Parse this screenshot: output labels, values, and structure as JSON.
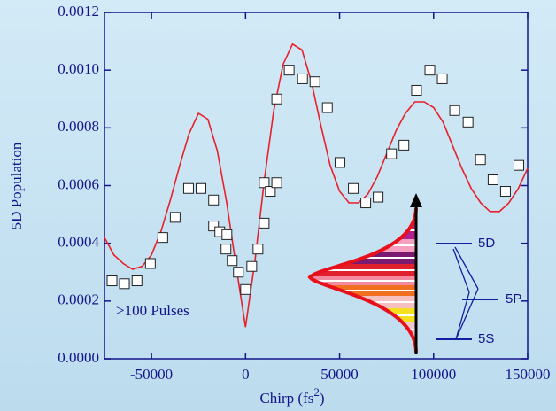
{
  "chart_data": {
    "type": "scatter",
    "xlabel": [
      "Chirp (fs",
      "2",
      ")"
    ],
    "ylabel": "5D Population",
    "xlim": [
      -75000,
      150000
    ],
    "xticks": [
      -50000,
      0,
      50000,
      100000,
      150000
    ],
    "ylim": [
      0,
      0.0012
    ],
    "yticks": [
      {
        "value": 0,
        "label": "0.0000"
      },
      0.0002,
      0.0004,
      0.0006,
      0.0008,
      {
        "value": 0.001,
        "label": "0.0010"
      },
      {
        "value": 0.0012,
        "label": "0.0012"
      }
    ],
    "annotation": ">100 Pulses",
    "levels": [
      "5D",
      "5P",
      "5S"
    ],
    "series": [
      {
        "type": "scatter",
        "color": "#ffffff",
        "x": [
          -71000,
          -64400,
          -57700,
          -50600,
          -44000,
          -37400,
          -30300,
          -23700,
          -17000,
          -17000,
          -13700,
          -9900,
          -10400,
          -7100,
          -3800,
          0,
          3300,
          6600,
          9900,
          9900,
          13200,
          16600,
          16600,
          23200,
          30300,
          36900,
          43500,
          50200,
          57300,
          63900,
          70500,
          77600,
          84200,
          90900,
          98000,
          104600,
          111200,
          118300,
          124900,
          131600,
          138200,
          145300
        ],
        "values": [
          0.00027,
          0.00026,
          0.00027,
          0.00033,
          0.00042,
          0.00049,
          0.00059,
          0.00059,
          0.00055,
          0.00046,
          0.00044,
          0.00043,
          0.00038,
          0.00034,
          0.0003,
          0.00024,
          0.00032,
          0.00038,
          0.00047,
          0.00061,
          0.00058,
          0.00061,
          0.0009,
          0.001,
          0.00097,
          0.00096,
          0.00087,
          0.00068,
          0.00059,
          0.00054,
          0.00056,
          0.00071,
          0.00074,
          0.00093,
          0.001,
          0.00097,
          0.00086,
          0.00082,
          0.00069,
          0.00062,
          0.00058,
          0.00067
        ]
      },
      {
        "type": "line",
        "color": "#e8202a",
        "x": [
          -75000,
          -70000,
          -65000,
          -60000,
          -55000,
          -50000,
          -45000,
          -40000,
          -35000,
          -30000,
          -25000,
          -20000,
          -15000,
          -10000,
          -5000,
          0,
          5000,
          10000,
          15000,
          20000,
          25000,
          30000,
          35000,
          40000,
          45000,
          50000,
          55000,
          60000,
          65000,
          70000,
          75000,
          80000,
          85000,
          90000,
          95000,
          100000,
          105000,
          110000,
          115000,
          120000,
          125000,
          130000,
          135000,
          140000,
          145000,
          150000
        ],
        "values": [
          0.00042,
          0.00036,
          0.00033,
          0.00031,
          0.00032,
          0.00036,
          0.00044,
          0.00055,
          0.00067,
          0.00078,
          0.00085,
          0.00083,
          0.00072,
          0.00054,
          0.00032,
          0.00011,
          0.00034,
          0.00062,
          0.00086,
          0.00102,
          0.00109,
          0.00107,
          0.00096,
          0.00081,
          0.00067,
          0.00058,
          0.00054,
          0.00054,
          0.00057,
          0.00063,
          0.00071,
          0.00079,
          0.00085,
          0.00089,
          0.00089,
          0.00087,
          0.00082,
          0.00074,
          0.00066,
          0.00059,
          0.00054,
          0.00051,
          0.00051,
          0.00054,
          0.00059,
          0.00066
        ]
      }
    ]
  }
}
